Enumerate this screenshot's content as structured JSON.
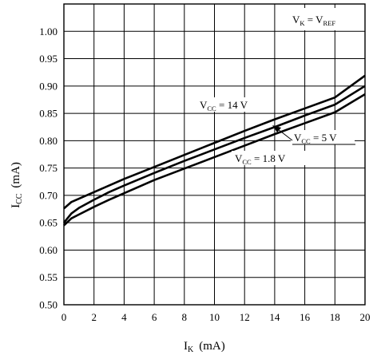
{
  "chart_data": {
    "type": "line",
    "xlabel": "I",
    "xlabel_sub": "K",
    "xlabel_unit": "(mA)",
    "ylabel": "I",
    "ylabel_sub": "CC",
    "ylabel_unit": "(mA)",
    "xlim": [
      0,
      20
    ],
    "ylim": [
      0.5,
      1.05
    ],
    "x_ticks": [
      0,
      2,
      4,
      6,
      8,
      10,
      12,
      14,
      16,
      18,
      20
    ],
    "x_tick_labels": [
      "0",
      "2",
      "4",
      "6",
      "8",
      "10",
      "12",
      "14",
      "16",
      "18",
      "20"
    ],
    "y_ticks": [
      0.5,
      0.55,
      0.6,
      0.65,
      0.7,
      0.75,
      0.8,
      0.85,
      0.9,
      0.95,
      1.0
    ],
    "y_tick_labels": [
      "0.50",
      "0.55",
      "0.60",
      "0.65",
      "0.70",
      "0.75",
      "0.80",
      "0.85",
      "0.90",
      "0.95",
      "1.00"
    ],
    "grid": true,
    "condition": {
      "a": "V",
      "a_sub": "K",
      "eq": " = ",
      "b": "V",
      "b_sub": "REF"
    },
    "series": [
      {
        "name": "VCC = 14 V",
        "label": {
          "v": "V",
          "sub": "CC",
          "rest": " = 14 V"
        },
        "x": [
          0,
          0.5,
          1,
          2,
          3,
          4,
          6,
          8,
          10,
          12,
          14,
          16,
          18,
          20
        ],
        "y": [
          0.676,
          0.688,
          0.694,
          0.706,
          0.718,
          0.73,
          0.752,
          0.774,
          0.796,
          0.818,
          0.839,
          0.859,
          0.879,
          0.919
        ]
      },
      {
        "name": "VCC = 5 V",
        "label": {
          "v": "V",
          "sub": "CC",
          "rest": " = 5 V"
        },
        "x": [
          0,
          0.5,
          1,
          2,
          3,
          4,
          6,
          8,
          10,
          12,
          14,
          16,
          18,
          20
        ],
        "y": [
          0.65,
          0.667,
          0.677,
          0.692,
          0.706,
          0.718,
          0.741,
          0.763,
          0.784,
          0.805,
          0.825,
          0.846,
          0.866,
          0.9
        ]
      },
      {
        "name": "VCC = 1.8 V",
        "label": {
          "v": "V",
          "sub": "CC",
          "rest": " = 1.8 V"
        },
        "x": [
          0,
          0.5,
          1,
          2,
          3,
          4,
          6,
          8,
          10,
          12,
          14,
          16,
          18,
          20
        ],
        "y": [
          0.645,
          0.658,
          0.665,
          0.679,
          0.692,
          0.704,
          0.728,
          0.749,
          0.77,
          0.791,
          0.812,
          0.832,
          0.852,
          0.885
        ]
      }
    ]
  }
}
